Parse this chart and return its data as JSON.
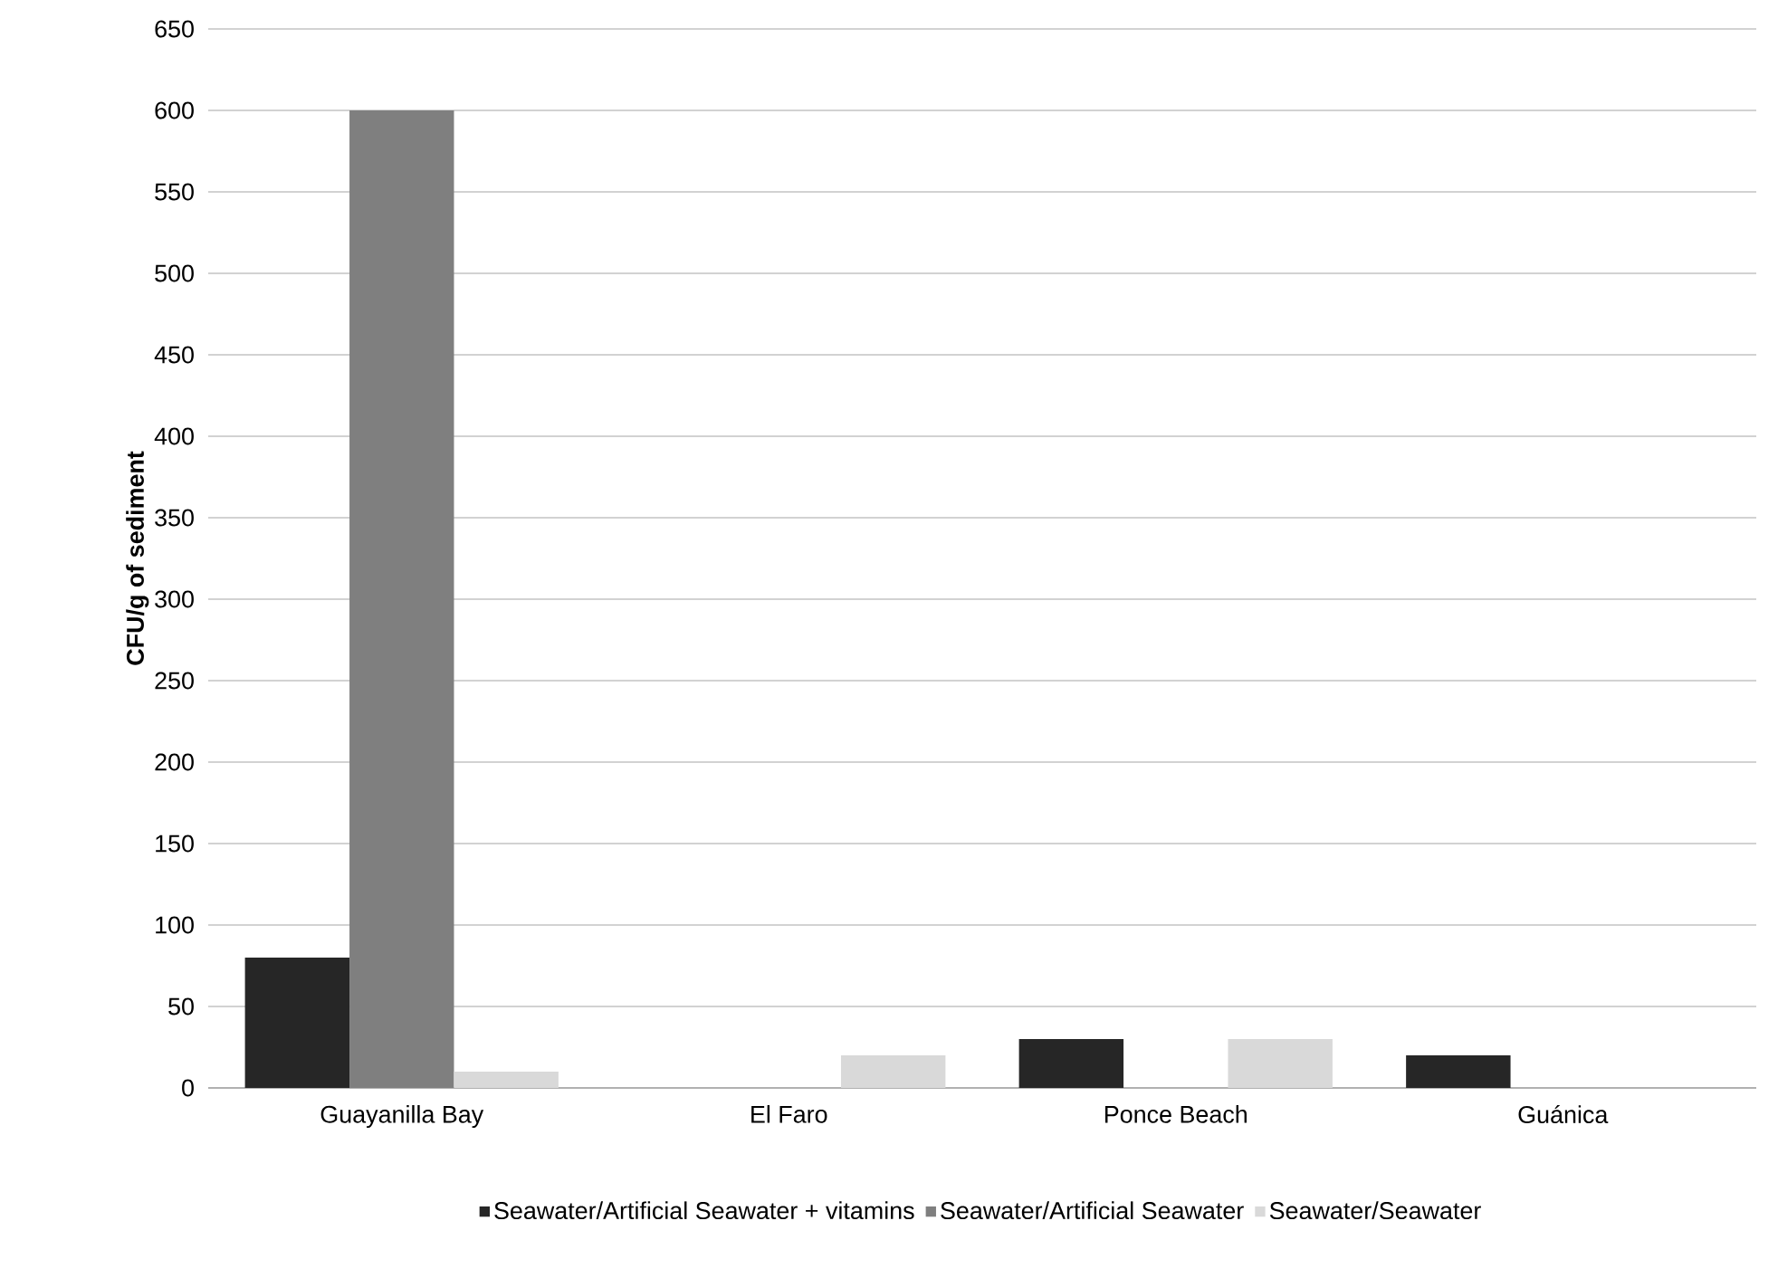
{
  "chart_data": {
    "type": "bar",
    "ylabel": "CFU/g of sediment",
    "categories": [
      "Guayanilla Bay",
      "El Faro",
      "Ponce Beach",
      "Guánica"
    ],
    "series": [
      {
        "name": "Seawater/Artificial Seawater + vitamins",
        "color": "#262626",
        "values": [
          80,
          0,
          30,
          20
        ]
      },
      {
        "name": "Seawater/Artificial Seawater",
        "color": "#7f7f7f",
        "values": [
          600,
          0,
          0,
          0
        ]
      },
      {
        "name": "Seawater/Seawater",
        "color": "#d9d9d9",
        "values": [
          10,
          20,
          30,
          0
        ]
      }
    ],
    "ylim": [
      0,
      650
    ],
    "yticks": [
      0,
      50,
      100,
      150,
      200,
      250,
      300,
      350,
      400,
      450,
      500,
      550,
      600,
      650
    ],
    "grid": "y",
    "legend": "bottom"
  }
}
